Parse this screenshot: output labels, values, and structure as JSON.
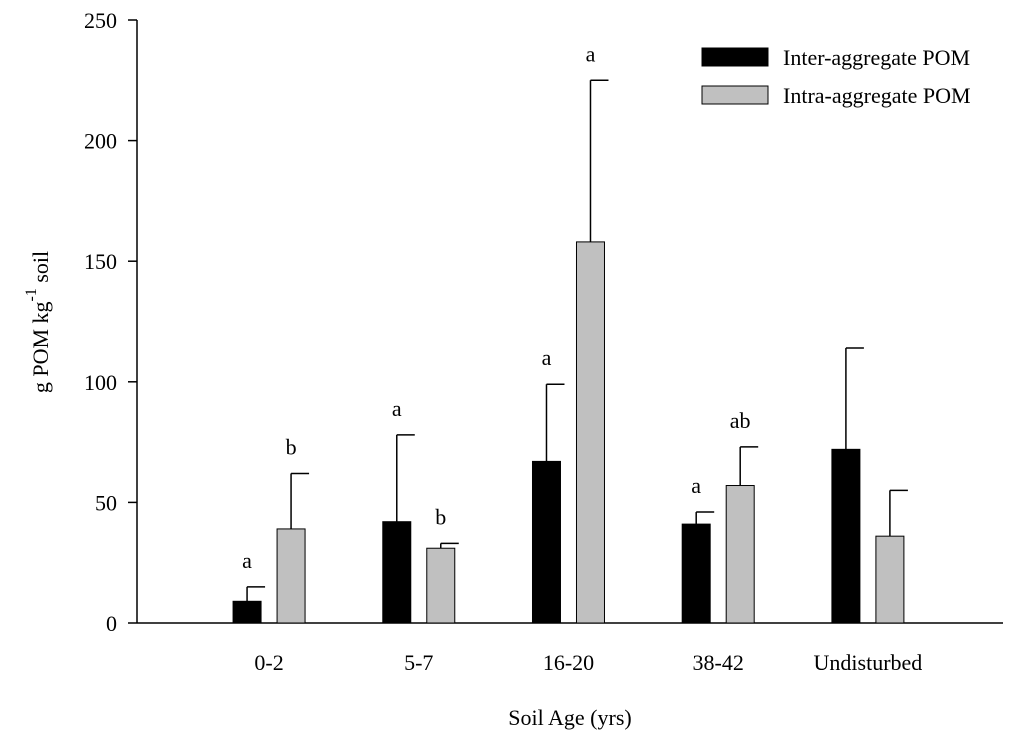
{
  "chart_data": {
    "type": "bar",
    "xlabel": "Soil Age (yrs)",
    "ylabel_main": "g POM kg",
    "ylabel_sup": "-1",
    "ylabel_tail": " soil",
    "ylim": [
      0,
      250
    ],
    "yticks": [
      0,
      50,
      100,
      150,
      200,
      250
    ],
    "categories": [
      "0-2",
      "5-7",
      "16-20",
      "38-42",
      "Undisturbed"
    ],
    "series": [
      {
        "name": "Inter-aggregate POM",
        "color": "#000000",
        "values": [
          9,
          42,
          67,
          41,
          72
        ],
        "errors": [
          6,
          36,
          32,
          5,
          42
        ],
        "letters": [
          "a",
          "a",
          "a",
          "a",
          ""
        ]
      },
      {
        "name": "Intra-aggregate POM",
        "color": "#c0c0c0",
        "values": [
          39,
          31,
          158,
          57,
          36
        ],
        "errors": [
          23,
          2,
          67,
          16,
          19
        ],
        "letters": [
          "b",
          "b",
          "a",
          "ab",
          ""
        ]
      }
    ],
    "legend_position": "top-right",
    "grid": false
  }
}
